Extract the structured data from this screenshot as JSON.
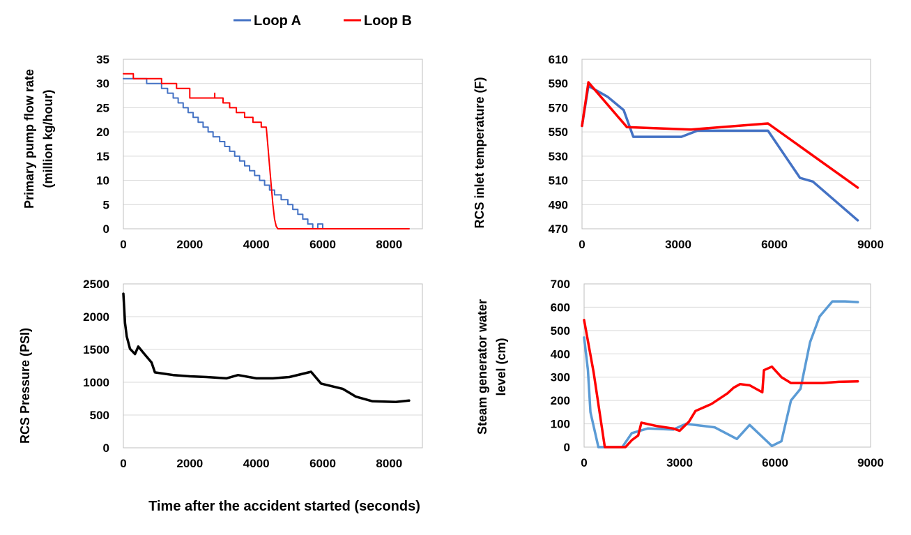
{
  "legend": {
    "items": [
      {
        "label": "Loop A",
        "color": "#4472C4"
      },
      {
        "label": "Loop B",
        "color": "#FF0000"
      }
    ]
  },
  "common_xlabel": "Time after the accident started (seconds)",
  "chart_data": [
    {
      "id": "flow",
      "type": "line",
      "ylabel": [
        "Primary pump flow rate",
        "(million kg/hour)"
      ],
      "xlim": [
        0,
        9000
      ],
      "ylim": [
        0,
        35
      ],
      "xticks": [
        0,
        2000,
        4000,
        6000,
        8000
      ],
      "yticks": [
        0,
        5,
        10,
        15,
        20,
        25,
        30,
        35
      ],
      "xtick_labels": [
        "0",
        "2000",
        "4000",
        "6000",
        "8000"
      ],
      "ytick_labels": [
        "0",
        "5",
        "10",
        "15",
        "20",
        "25",
        "30",
        "35"
      ],
      "series": [
        {
          "name": "Loop A",
          "color": "#4472C4",
          "width": 2,
          "x": [
            0,
            700,
            700,
            1150,
            1150,
            1330,
            1330,
            1500,
            1500,
            1650,
            1650,
            1800,
            1800,
            1950,
            1950,
            2100,
            2100,
            2250,
            2250,
            2400,
            2400,
            2550,
            2550,
            2700,
            2700,
            2900,
            2900,
            3050,
            3050,
            3200,
            3200,
            3350,
            3350,
            3500,
            3500,
            3650,
            3650,
            3800,
            3800,
            3950,
            3950,
            4100,
            4100,
            4250,
            4250,
            4400,
            4400,
            4550,
            4550,
            4750,
            4750,
            4950,
            4950,
            5100,
            5100,
            5250,
            5250,
            5400,
            5400,
            5550,
            5550,
            5700,
            5700,
            5850,
            5850,
            6000,
            6000,
            6300,
            6300,
            7000,
            7000,
            8600
          ],
          "y": [
            31,
            31,
            30,
            30,
            29,
            29,
            28,
            28,
            27,
            27,
            26,
            26,
            25,
            25,
            24,
            24,
            23,
            23,
            22,
            22,
            21,
            21,
            20,
            20,
            19,
            19,
            18,
            18,
            17,
            17,
            16,
            16,
            15,
            15,
            14,
            14,
            13,
            13,
            12,
            12,
            11,
            11,
            10,
            10,
            9,
            9,
            8,
            8,
            7,
            7,
            6,
            6,
            5,
            5,
            4,
            4,
            3,
            3,
            2,
            2,
            1,
            1,
            0,
            0,
            1,
            1,
            0,
            0,
            0,
            0,
            0,
            0
          ]
        },
        {
          "name": "Loop B",
          "color": "#FF0000",
          "width": 2,
          "x": [
            0,
            300,
            300,
            1150,
            1150,
            1600,
            1600,
            2000,
            2000,
            2750,
            2750,
            2750,
            2750,
            3000,
            3000,
            3200,
            3200,
            3400,
            3400,
            3650,
            3650,
            3900,
            3900,
            4150,
            4150,
            4300,
            4350,
            4400,
            4450,
            4500,
            4550,
            4600,
            4650,
            8600
          ],
          "y": [
            32,
            32,
            31,
            31,
            30,
            30,
            29,
            29,
            27,
            27,
            28,
            27,
            27,
            27,
            26,
            26,
            25,
            25,
            24,
            24,
            23,
            23,
            22,
            22,
            21,
            21,
            17,
            13,
            9,
            5,
            2,
            0.5,
            0,
            0
          ]
        }
      ]
    },
    {
      "id": "temp",
      "type": "line",
      "ylabel": [
        "RCS inlet temperature (F)"
      ],
      "xlim": [
        0,
        9000
      ],
      "ylim": [
        470,
        610
      ],
      "xticks": [
        0,
        3000,
        6000,
        9000
      ],
      "yticks": [
        470,
        490,
        510,
        530,
        550,
        570,
        590,
        610
      ],
      "xtick_labels": [
        "0",
        "3000",
        "6000",
        "9000"
      ],
      "ytick_labels": [
        "470",
        "490",
        "510",
        "530",
        "550",
        "570",
        "590",
        "610"
      ],
      "series": [
        {
          "name": "Loop A",
          "color": "#4472C4",
          "width": 3.5,
          "x": [
            0,
            200,
            400,
            800,
            1300,
            1600,
            3100,
            3600,
            5800,
            6800,
            7200,
            8600
          ],
          "y": [
            555,
            588,
            585,
            579,
            568,
            546,
            546,
            551,
            551,
            512,
            509,
            477
          ]
        },
        {
          "name": "Loop B",
          "color": "#FF0000",
          "width": 3.5,
          "x": [
            0,
            200,
            1400,
            3400,
            5800,
            8600
          ],
          "y": [
            555,
            591,
            554,
            552,
            557,
            504
          ]
        }
      ]
    },
    {
      "id": "pressure",
      "type": "line",
      "ylabel": [
        "RCS Pressure (PSI)"
      ],
      "xlim": [
        0,
        9000
      ],
      "ylim": [
        0,
        2500
      ],
      "xticks": [
        0,
        2000,
        4000,
        6000,
        8000
      ],
      "yticks": [
        0,
        500,
        1000,
        1500,
        2000,
        2500
      ],
      "xtick_labels": [
        "0",
        "2000",
        "4000",
        "6000",
        "8000"
      ],
      "ytick_labels": [
        "0",
        "500",
        "1000",
        "1500",
        "2000",
        "2500"
      ],
      "series": [
        {
          "name": "RCS Pressure",
          "color": "#000000",
          "width": 3.5,
          "x": [
            0,
            50,
            100,
            200,
            350,
            450,
            600,
            850,
            950,
            1500,
            2000,
            2500,
            3100,
            3450,
            4000,
            4500,
            5000,
            5650,
            5950,
            6600,
            7000,
            7500,
            8200,
            8600
          ],
          "y": [
            2350,
            1900,
            1700,
            1510,
            1430,
            1545,
            1450,
            1300,
            1150,
            1110,
            1090,
            1080,
            1060,
            1110,
            1060,
            1060,
            1080,
            1160,
            980,
            900,
            780,
            710,
            700,
            720
          ]
        }
      ]
    },
    {
      "id": "sglevel",
      "type": "line",
      "ylabel": [
        "Steam generator water",
        "level (cm)"
      ],
      "xlim": [
        0,
        9000
      ],
      "ylim": [
        0,
        700
      ],
      "xticks": [
        0,
        3000,
        6000,
        9000
      ],
      "yticks": [
        0,
        100,
        200,
        300,
        400,
        500,
        600,
        700
      ],
      "xtick_labels": [
        "0",
        "3000",
        "6000",
        "9000"
      ],
      "ytick_labels": [
        "0",
        "100",
        "200",
        "300",
        "400",
        "500",
        "600",
        "700"
      ],
      "series": [
        {
          "name": "Loop A",
          "color": "#5B9BD5",
          "width": 3.5,
          "x": [
            0,
            120,
            200,
            450,
            700,
            1200,
            1500,
            2000,
            2800,
            3200,
            4100,
            4800,
            5200,
            5900,
            6200,
            6500,
            6800,
            7100,
            7400,
            7800,
            8200,
            8600
          ],
          "y": [
            470,
            330,
            150,
            0,
            0,
            0,
            60,
            80,
            75,
            100,
            85,
            35,
            95,
            5,
            25,
            200,
            250,
            450,
            560,
            625,
            625,
            622
          ]
        },
        {
          "name": "Loop B",
          "color": "#FF0000",
          "width": 3.5,
          "x": [
            0,
            300,
            650,
            1300,
            1500,
            1700,
            1800,
            2300,
            2800,
            3000,
            3300,
            3500,
            4000,
            4500,
            4700,
            4900,
            5200,
            5600,
            5650,
            5900,
            6200,
            6500,
            7000,
            7500,
            8000,
            8600
          ],
          "y": [
            545,
            320,
            0,
            0,
            30,
            50,
            105,
            90,
            80,
            70,
            110,
            155,
            185,
            230,
            255,
            270,
            265,
            235,
            330,
            345,
            300,
            275,
            275,
            275,
            280,
            282
          ]
        }
      ]
    }
  ]
}
